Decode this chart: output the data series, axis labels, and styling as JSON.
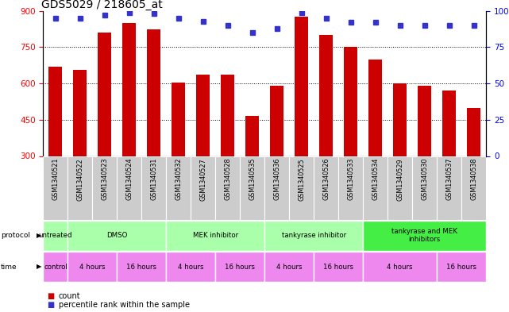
{
  "title": "GDS5029 / 218605_at",
  "samples": [
    "GSM1340521",
    "GSM1340522",
    "GSM1340523",
    "GSM1340524",
    "GSM1340531",
    "GSM1340532",
    "GSM1340527",
    "GSM1340528",
    "GSM1340535",
    "GSM1340536",
    "GSM1340525",
    "GSM1340526",
    "GSM1340533",
    "GSM1340534",
    "GSM1340529",
    "GSM1340530",
    "GSM1340537",
    "GSM1340538"
  ],
  "bar_values": [
    670,
    655,
    810,
    850,
    825,
    605,
    635,
    635,
    465,
    590,
    875,
    800,
    750,
    700,
    600,
    590,
    570,
    500
  ],
  "percentile_values": [
    95,
    95,
    97,
    99,
    98,
    95,
    93,
    90,
    85,
    88,
    99,
    95,
    92,
    92,
    90,
    90,
    90,
    90
  ],
  "bar_color": "#cc0000",
  "dot_color": "#3333cc",
  "ylim_left": [
    300,
    900
  ],
  "ylim_right": [
    0,
    100
  ],
  "yticks_left": [
    300,
    450,
    600,
    750,
    900
  ],
  "yticks_right": [
    0,
    25,
    50,
    75,
    100
  ],
  "grid_values": [
    450,
    600,
    750
  ],
  "tick_bg_color": "#cccccc",
  "protocol_groups": [
    {
      "label": "untreated",
      "start": 0,
      "end": 1,
      "color": "#aaffaa"
    },
    {
      "label": "DMSO",
      "start": 1,
      "end": 5,
      "color": "#aaffaa"
    },
    {
      "label": "MEK inhibitor",
      "start": 5,
      "end": 9,
      "color": "#aaffaa"
    },
    {
      "label": "tankyrase inhibitor",
      "start": 9,
      "end": 13,
      "color": "#aaffaa"
    },
    {
      "label": "tankyrase and MEK\ninhibitors",
      "start": 13,
      "end": 18,
      "color": "#44ee44"
    }
  ],
  "time_groups": [
    {
      "label": "control",
      "start": 0,
      "end": 1,
      "color": "#ee88ee"
    },
    {
      "label": "4 hours",
      "start": 1,
      "end": 3,
      "color": "#ee88ee"
    },
    {
      "label": "16 hours",
      "start": 3,
      "end": 5,
      "color": "#ee88ee"
    },
    {
      "label": "4 hours",
      "start": 5,
      "end": 7,
      "color": "#ee88ee"
    },
    {
      "label": "16 hours",
      "start": 7,
      "end": 9,
      "color": "#ee88ee"
    },
    {
      "label": "4 hours",
      "start": 9,
      "end": 11,
      "color": "#ee88ee"
    },
    {
      "label": "16 hours",
      "start": 11,
      "end": 13,
      "color": "#ee88ee"
    },
    {
      "label": "4 hours",
      "start": 13,
      "end": 16,
      "color": "#ee88ee"
    },
    {
      "label": "16 hours",
      "start": 16,
      "end": 18,
      "color": "#ee88ee"
    }
  ]
}
